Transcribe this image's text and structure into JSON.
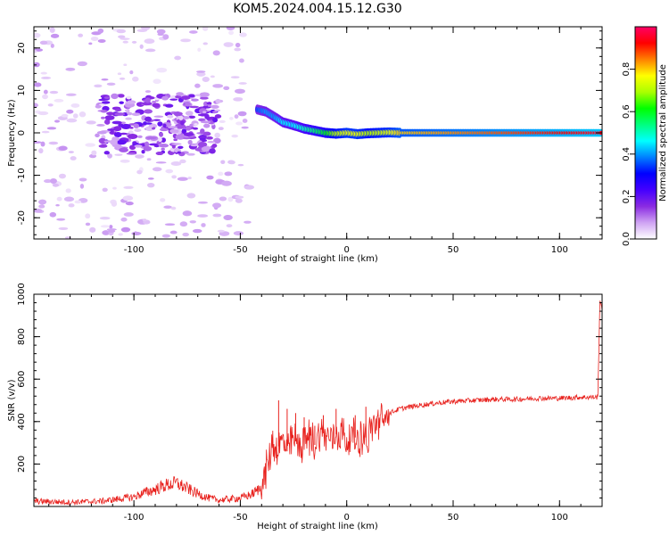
{
  "title": "KOM5.2024.004.15.12.G30",
  "chart_data": [
    {
      "type": "heatmap",
      "xlabel": "Height of straight line (km)",
      "ylabel": "Frequency (Hz)",
      "xlim": [
        -147,
        120
      ],
      "ylim": [
        -25,
        25
      ],
      "xticks": [
        -100,
        -50,
        0,
        50,
        100
      ],
      "yticks": [
        -20,
        -10,
        0,
        10,
        20
      ],
      "colorbar": {
        "label": "Normalized spectral amplitude",
        "range": [
          0,
          1
        ],
        "ticks": [
          "0.0",
          "0.2",
          "0.4",
          "0.6",
          "0.8"
        ],
        "colormap": [
          "#ffffff",
          "#cfa3f3",
          "#8a2be2",
          "#4400ff",
          "#0000ff",
          "#0080ff",
          "#00ffff",
          "#00ff80",
          "#00ff00",
          "#aaff00",
          "#ffff00",
          "#ff8000",
          "#ff0000",
          "#ff0066"
        ]
      },
      "ridge": {
        "x": [
          -42,
          -38,
          -34,
          -30,
          -25,
          -20,
          -15,
          -10,
          -5,
          0,
          5,
          10,
          15,
          20,
          25,
          120
        ],
        "y": [
          5.5,
          5.0,
          3.8,
          2.5,
          1.8,
          1.0,
          0.5,
          0.0,
          -0.2,
          0.0,
          -0.3,
          -0.1,
          0.0,
          0.1,
          0.0,
          0.0
        ],
        "amplitude": [
          0.35,
          0.4,
          0.4,
          0.45,
          0.45,
          0.5,
          0.55,
          0.6,
          0.7,
          0.75,
          0.75,
          0.7,
          0.72,
          0.75,
          0.8,
          0.95
        ]
      },
      "noise_region": {
        "x_range": [
          -147,
          -45
        ],
        "y_range": [
          -25,
          25
        ],
        "core_x_range": [
          -115,
          -60
        ],
        "core_y_range": [
          -5,
          9
        ],
        "amplitude_range": [
          0.02,
          0.2
        ]
      }
    },
    {
      "type": "line",
      "xlabel": "Height of straight line (km)",
      "ylabel": "SNR (v/v)",
      "xlim": [
        -147,
        120
      ],
      "ylim": [
        0,
        1000
      ],
      "xticks": [
        -100,
        -50,
        0,
        50,
        100
      ],
      "yticks": [
        200,
        400,
        600,
        800,
        1000
      ],
      "color": "#e8211d",
      "series": [
        {
          "x": [
            -147,
            -130,
            -115,
            -100,
            -95,
            -90,
            -85,
            -80,
            -75,
            -70,
            -65,
            -60,
            -55,
            -50,
            -45,
            -40,
            -37,
            -35,
            -33,
            -30,
            -28,
            -25,
            -22,
            -20,
            -17,
            -15,
            -12,
            -10,
            -7,
            -5,
            -2,
            0,
            3,
            5,
            8,
            10,
            12,
            15,
            18,
            20,
            25,
            30,
            40,
            50,
            60,
            70,
            80,
            90,
            100,
            110,
            118,
            119,
            120
          ],
          "y": [
            25,
            20,
            25,
            45,
            65,
            80,
            100,
            110,
            85,
            60,
            40,
            30,
            35,
            40,
            55,
            90,
            200,
            300,
            270,
            310,
            260,
            320,
            280,
            310,
            330,
            290,
            360,
            330,
            320,
            340,
            350,
            300,
            340,
            310,
            340,
            310,
            380,
            400,
            410,
            440,
            460,
            470,
            485,
            495,
            500,
            505,
            505,
            510,
            510,
            515,
            515,
            980,
            930
          ]
        }
      ],
      "spikes": {
        "x": [
          -32,
          -28,
          -24,
          -20,
          -15,
          -11,
          -5,
          4,
          9
        ],
        "y": [
          500,
          460,
          440,
          420,
          380,
          430,
          460,
          430,
          470
        ]
      }
    }
  ]
}
